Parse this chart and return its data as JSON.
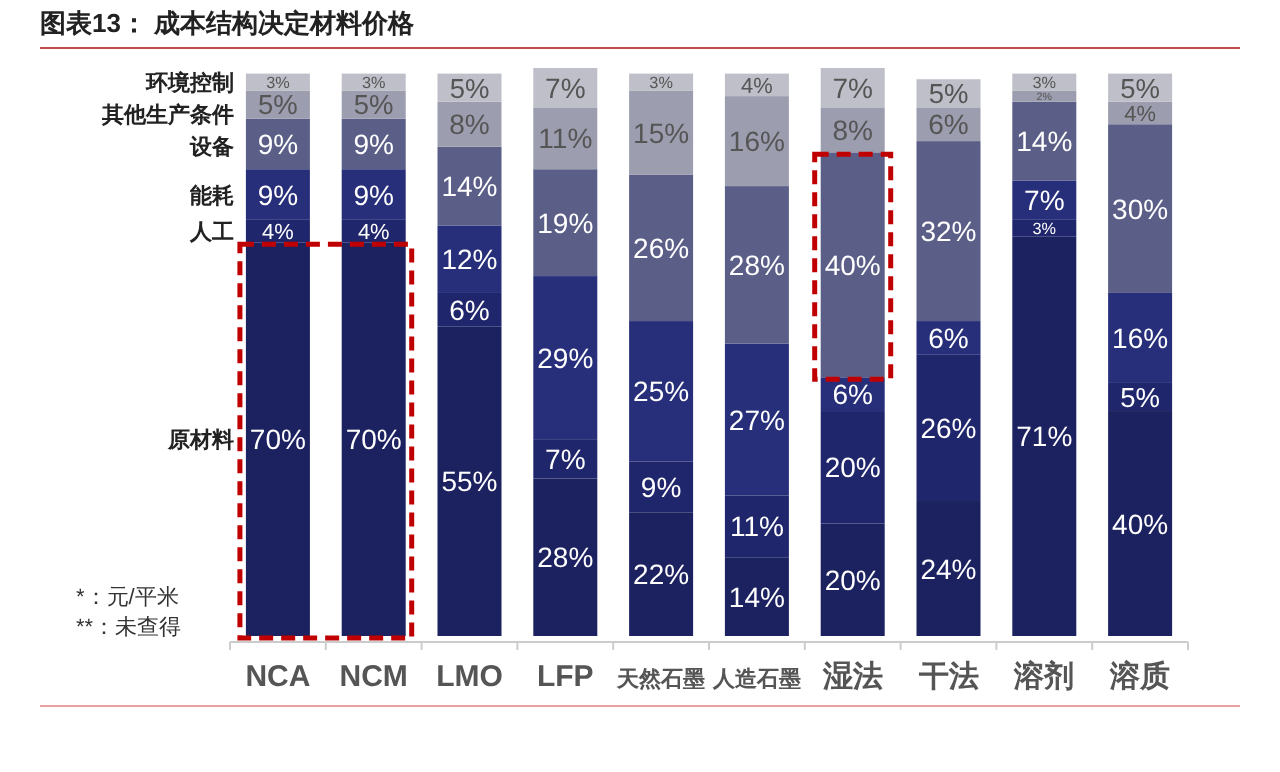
{
  "chart_data": {
    "type": "bar",
    "stacked": true,
    "title": "图表13：   成本结构决定材料价格",
    "legend": "left",
    "categories": [
      "NCA",
      "NCM",
      "LMO",
      "LFP",
      "天然石墨",
      "人造石墨",
      "湿法",
      "干法",
      "溶剂",
      "溶质"
    ],
    "series": [
      {
        "name": "原材料",
        "color": "#1c2160",
        "values": [
          70,
          70,
          55,
          28,
          22,
          14,
          20,
          24,
          71,
          40
        ],
        "value_labels": [
          "70%",
          "70%",
          "55%",
          "28%",
          "22%",
          "14%",
          "20%",
          "24%",
          "71%",
          "40%"
        ]
      },
      {
        "name": "人工",
        "color": "#20266c",
        "values": [
          4,
          4,
          6,
          7,
          9,
          11,
          20,
          26,
          3,
          5
        ],
        "value_labels": [
          "4%",
          "4%",
          "6%",
          "7%",
          "9%",
          "11%",
          "20%",
          "26%",
          "3%",
          "5%"
        ]
      },
      {
        "name": "能耗",
        "color": "#272f7a",
        "values": [
          9,
          9,
          12,
          29,
          25,
          27,
          6,
          6,
          7,
          16
        ],
        "value_labels": [
          "9%",
          "9%",
          "12%",
          "29%",
          "25%",
          "27%",
          "6%",
          "6%",
          "7%",
          "16%"
        ]
      },
      {
        "name": "设备",
        "color": "#5b5f88",
        "values": [
          9,
          9,
          14,
          19,
          26,
          28,
          40,
          32,
          14,
          30
        ],
        "value_labels": [
          "9%",
          "9%",
          "14%",
          "19%",
          "26%",
          "28%",
          "40%",
          "32%",
          "14%",
          "30%"
        ]
      },
      {
        "name": "其他生产条件",
        "color": "#9c9daf",
        "values": [
          5,
          5,
          8,
          11,
          15,
          16,
          8,
          6,
          2,
          4
        ],
        "value_labels": [
          "5%",
          "5%",
          "8%",
          "11%",
          "15%",
          "16%",
          "8%",
          "6%",
          "2%",
          "4%"
        ]
      },
      {
        "name": "环境控制",
        "color": "#bebfc8",
        "values": [
          3,
          3,
          5,
          7,
          3,
          4,
          7,
          5,
          3,
          5
        ],
        "value_labels": [
          "3%",
          "3%",
          "5%",
          "7%",
          "3%",
          "4%",
          "7%",
          "5%",
          "3%",
          "5%"
        ]
      }
    ],
    "annotations": [
      "*：元/平米",
      "**：未查得"
    ]
  }
}
